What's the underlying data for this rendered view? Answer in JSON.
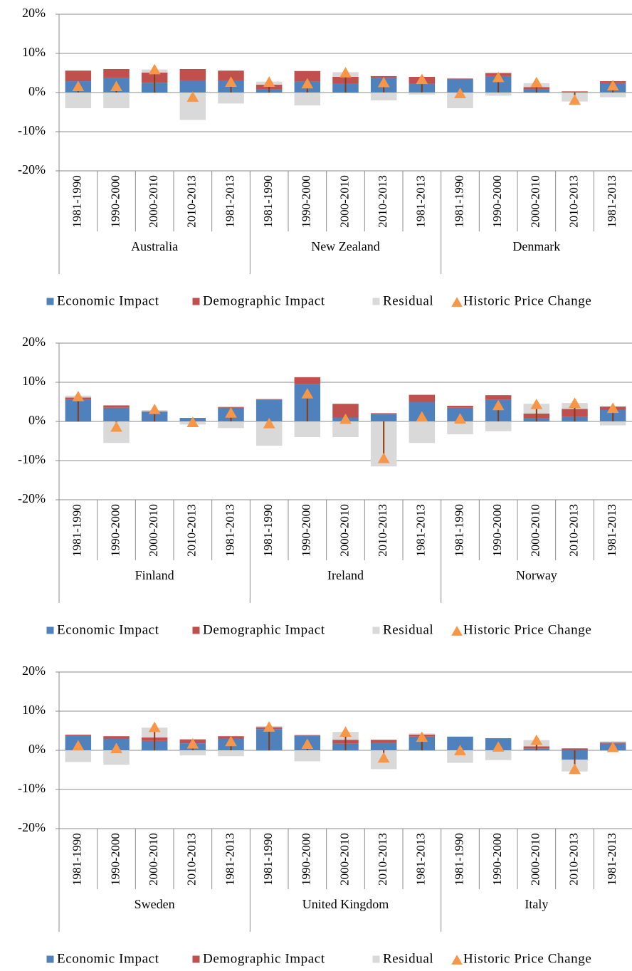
{
  "chart_data": [
    {
      "type": "bar",
      "stacked": true,
      "categories": [
        "1981-1990",
        "1990-2000",
        "2000-2010",
        "2010-2013",
        "1981-2013",
        "1981-1990",
        "1990-2000",
        "2000-2010",
        "2010-2013",
        "1981-2013",
        "1981-1990",
        "1990-2000",
        "2000-2010",
        "2010-2013",
        "1981-2013"
      ],
      "groups": [
        "Australia",
        "New Zealand",
        "Denmark"
      ],
      "ylim": [
        -20,
        20
      ],
      "yticks": [
        {
          "value": -20,
          "label": "-20%"
        },
        {
          "value": -10,
          "label": "-10%"
        },
        {
          "value": 0,
          "label": "0%"
        },
        {
          "value": 10,
          "label": "10%"
        },
        {
          "value": 20,
          "label": "20%"
        }
      ],
      "negative_tick_color": "#ff0000",
      "grid": true,
      "series": [
        {
          "name": "Economic Impact",
          "color": "#4f81bd",
          "values": [
            2.9,
            3.8,
            2.5,
            3.1,
            3.1,
            0.8,
            2.8,
            2.2,
            3.7,
            2.2,
            3.5,
            4.2,
            0.8,
            0.0,
            2.4
          ]
        },
        {
          "name": "Demographic Impact",
          "color": "#c0504d",
          "values": [
            2.7,
            2.2,
            2.6,
            2.9,
            2.5,
            1.2,
            2.7,
            1.8,
            0.5,
            1.8,
            0.1,
            0.8,
            0.6,
            0.3,
            0.5
          ]
        },
        {
          "name": "Residual",
          "color": "#d9d9d9",
          "values": [
            -4.0,
            -4.0,
            0.8,
            -7.0,
            -2.8,
            0.8,
            -3.3,
            1.2,
            -2.0,
            -0.5,
            -4.0,
            -0.8,
            1.0,
            -2.3,
            -1.2
          ]
        },
        {
          "name": "Historic Price Change",
          "color": "#f79646",
          "marker": "triangle",
          "stem_color": "#8b3a0f",
          "values": [
            1.5,
            1.5,
            5.8,
            -1.2,
            2.6,
            2.6,
            2.2,
            5.0,
            2.5,
            3.3,
            -0.3,
            3.8,
            2.5,
            -2.0,
            1.7
          ]
        }
      ]
    },
    {
      "type": "bar",
      "stacked": true,
      "categories": [
        "1981-1990",
        "1990-2000",
        "2000-2010",
        "2010-2013",
        "1981-2013",
        "1981-1990",
        "1990-2000",
        "2000-2010",
        "2010-2013",
        "1981-2013",
        "1981-1990",
        "1990-2000",
        "2000-2010",
        "2010-2013",
        "1981-2013"
      ],
      "groups": [
        "Finland",
        "Ireland",
        "Norway"
      ],
      "ylim": [
        -20,
        20
      ],
      "yticks": [
        {
          "value": -20,
          "label": "-20%"
        },
        {
          "value": -10,
          "label": "-10%"
        },
        {
          "value": 0,
          "label": "0%"
        },
        {
          "value": 10,
          "label": "10%"
        },
        {
          "value": 20,
          "label": "20%"
        }
      ],
      "negative_tick_color": "#ff0000",
      "grid": true,
      "series": [
        {
          "name": "Economic Impact",
          "color": "#4f81bd",
          "values": [
            5.5,
            3.5,
            2.5,
            0.9,
            3.5,
            5.5,
            9.5,
            1.0,
            1.8,
            5.0,
            3.5,
            5.5,
            0.8,
            1.2,
            3.0
          ]
        },
        {
          "name": "Demographic Impact",
          "color": "#c0504d",
          "values": [
            0.6,
            0.6,
            0.1,
            0.0,
            0.2,
            0.2,
            1.8,
            3.5,
            0.3,
            1.8,
            0.5,
            1.2,
            1.2,
            2.0,
            0.8
          ]
        },
        {
          "name": "Residual",
          "color": "#d9d9d9",
          "values": [
            0.5,
            -5.5,
            0.3,
            -0.8,
            -1.7,
            -6.2,
            -4.0,
            -4.0,
            -11.5,
            -5.5,
            -3.3,
            -2.5,
            2.5,
            1.5,
            -1.0
          ]
        },
        {
          "name": "Historic Price Change",
          "color": "#f79646",
          "marker": "triangle",
          "stem_color": "#8b3a0f",
          "values": [
            6.3,
            -1.5,
            3.0,
            -0.3,
            2.1,
            -0.6,
            7.0,
            0.5,
            -9.5,
            1.1,
            0.6,
            4.0,
            4.3,
            4.6,
            3.3
          ]
        }
      ]
    },
    {
      "type": "bar",
      "stacked": true,
      "categories": [
        "1981-1990",
        "1990-2000",
        "2000-2010",
        "2010-2013",
        "1981-2013",
        "1981-1990",
        "1990-2000",
        "2000-2010",
        "2010-2013",
        "1981-2013",
        "1981-1990",
        "1990-2000",
        "2000-2010",
        "2010-2013",
        "1981-2013"
      ],
      "groups": [
        "Sweden",
        "United Kingdom",
        "Italy"
      ],
      "ylim": [
        -20,
        20
      ],
      "yticks": [
        {
          "value": -20,
          "label": "-20%"
        },
        {
          "value": -10,
          "label": "-10%"
        },
        {
          "value": 0,
          "label": "0%"
        },
        {
          "value": 10,
          "label": "10%"
        },
        {
          "value": 20,
          "label": "20%"
        }
      ],
      "negative_tick_color": "#ff0000",
      "grid": true,
      "series": [
        {
          "name": "Economic Impact",
          "color": "#4f81bd",
          "values": [
            3.7,
            3.0,
            2.4,
            1.8,
            3.0,
            5.4,
            3.7,
            1.7,
            1.9,
            3.5,
            3.5,
            3.1,
            0.5,
            -2.4,
            1.7
          ]
        },
        {
          "name": "Demographic Impact",
          "color": "#c0504d",
          "values": [
            0.3,
            0.6,
            0.9,
            1.0,
            0.6,
            0.5,
            0.2,
            1.0,
            0.8,
            0.5,
            0.0,
            0.0,
            0.5,
            0.5,
            0.3
          ]
        },
        {
          "name": "Residual",
          "color": "#d9d9d9",
          "values": [
            -3.0,
            -3.7,
            2.5,
            -1.3,
            -1.5,
            0.3,
            -2.8,
            2.0,
            -4.8,
            0.3,
            -3.2,
            -2.5,
            1.6,
            -3.0,
            0.3
          ]
        },
        {
          "name": "Historic Price Change",
          "color": "#f79646",
          "marker": "triangle",
          "stem_color": "#8b3a0f",
          "values": [
            1.1,
            0.4,
            5.8,
            1.6,
            2.2,
            5.9,
            1.5,
            4.6,
            -2.0,
            3.3,
            -0.1,
            0.8,
            2.5,
            -4.9,
            0.7
          ]
        }
      ]
    }
  ]
}
